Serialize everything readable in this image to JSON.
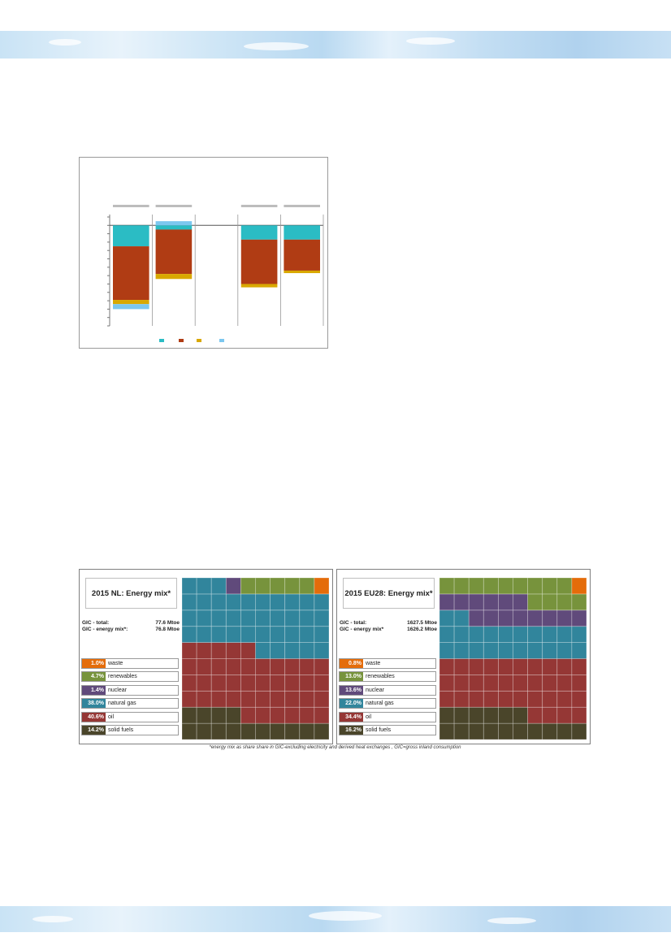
{
  "colors": {
    "waste": "#e46c0a",
    "renewables": "#77933c",
    "nuclear": "#604a7b",
    "natural_gas": "#31859c",
    "oil": "#953735",
    "solid_fuels": "#4a452a",
    "bar_teal": "#2bbcc4",
    "bar_rust": "#b03c14",
    "bar_gold": "#d9a800",
    "bar_lightblue": "#7cc7ef"
  },
  "chart_data": [
    {
      "type": "bar",
      "stacked": true,
      "title": "",
      "xlabel": "",
      "ylabel": "",
      "categories": [
        "",
        "",
        "",
        "",
        ""
      ],
      "ylim": [
        -12,
        1
      ],
      "series": [
        {
          "name": "",
          "values": [
            -2.5,
            -0.5,
            0,
            -1.7,
            -1.7
          ]
        },
        {
          "name": "",
          "values": [
            -6.4,
            -5.3,
            0,
            -5.3,
            -3.7
          ]
        },
        {
          "name": "",
          "values": [
            -0.5,
            -0.6,
            0,
            -0.4,
            -0.3
          ]
        },
        {
          "name": "",
          "values": [
            -0.6,
            0.5,
            0,
            0,
            0
          ]
        }
      ],
      "legend": [
        "",
        "",
        "",
        ""
      ],
      "legend_position": "bottom"
    },
    {
      "type": "waffle",
      "title": "2015 NL: Energy mix*",
      "categories": [
        "solid fuels",
        "oil",
        "natural gas",
        "nuclear",
        "renewables",
        "waste"
      ],
      "values": [
        14.2,
        40.6,
        38.0,
        1.4,
        4.7,
        1.0
      ]
    },
    {
      "type": "waffle",
      "title": "2015 EU28: Energy mix*",
      "categories": [
        "solid fuels",
        "oil",
        "natural gas",
        "nuclear",
        "renewables",
        "waste"
      ],
      "values": [
        16.2,
        34.4,
        22.0,
        13.6,
        13.0,
        0.8
      ]
    }
  ],
  "nl": {
    "title": "2015 NL: Energy mix*",
    "gic_total_label": "GIC - total:",
    "gic_total_value": "77.6 Mtoe",
    "gic_mix_label": "GIC - energy mix*:",
    "gic_mix_value": "76.8 Mtoe",
    "legend": [
      {
        "pct": "1.0%",
        "name": "waste",
        "key": "waste"
      },
      {
        "pct": "4.7%",
        "name": "renewables",
        "key": "renewables"
      },
      {
        "pct": "1.4%",
        "name": "nuclear",
        "key": "nuclear"
      },
      {
        "pct": "38.0%",
        "name": "natural gas",
        "key": "natural_gas"
      },
      {
        "pct": "40.6%",
        "name": "oil",
        "key": "oil"
      },
      {
        "pct": "14.2%",
        "name": "solid fuels",
        "key": "solid_fuels"
      }
    ]
  },
  "eu": {
    "title": "2015 EU28: Energy mix*",
    "gic_total_label": "GIC - total:",
    "gic_total_value": "1627.5 Mtoe",
    "gic_mix_label": "GIC - energy mix*",
    "gic_mix_value": "1626.2 Mtoe",
    "legend": [
      {
        "pct": "0.8%",
        "name": "waste",
        "key": "waste"
      },
      {
        "pct": "13.0%",
        "name": "renewables",
        "key": "renewables"
      },
      {
        "pct": "13.6%",
        "name": "nuclear",
        "key": "nuclear"
      },
      {
        "pct": "22.0%",
        "name": "natural gas",
        "key": "natural_gas"
      },
      {
        "pct": "34.4%",
        "name": "oil",
        "key": "oil"
      },
      {
        "pct": "16.2%",
        "name": "solid fuels",
        "key": "solid_fuels"
      }
    ]
  },
  "footnote": "*energy mix as share share in GIC-excluding electricity and derived heat exchanges , GIC=gross inland consumption"
}
